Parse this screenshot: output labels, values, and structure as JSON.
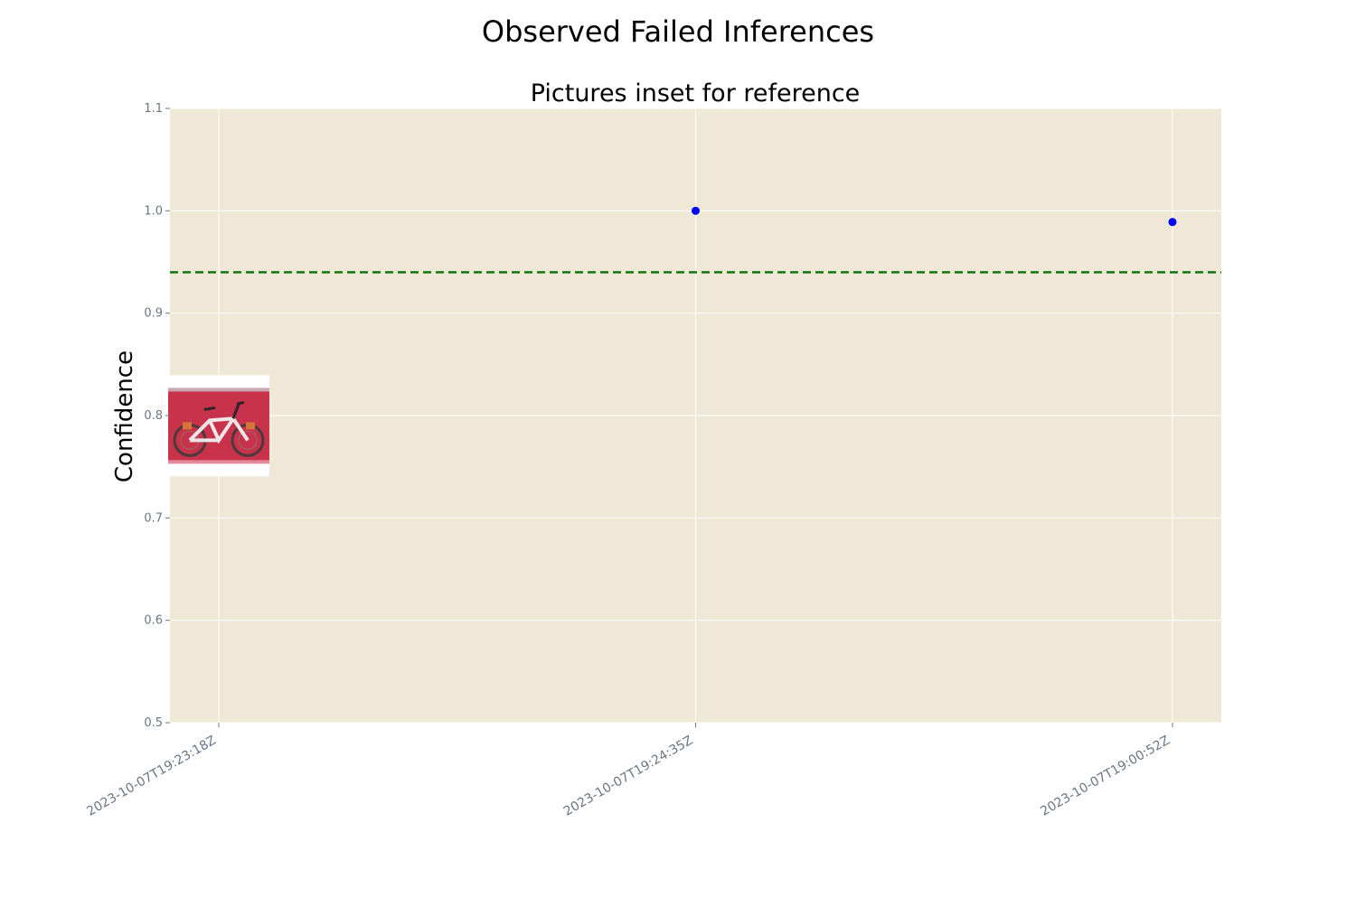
{
  "chart_data": {
    "type": "scatter",
    "title": "Observed Failed Inferences",
    "subtitle": "Pictures inset for reference",
    "xlabel": "",
    "ylabel": "Confidence",
    "categories": [
      "2023-10-07T19:23:18Z",
      "2023-10-07T19:24:35Z",
      "2023-10-07T19:00:52Z"
    ],
    "points": [
      {
        "x": "2023-10-07T19:24:35Z",
        "y": 1.0
      },
      {
        "x": "2023-10-07T19:00:52Z",
        "y": 0.989
      }
    ],
    "threshold": 0.94,
    "ylim": [
      0.5,
      1.1
    ],
    "yticks": [
      0.5,
      0.6,
      0.7,
      0.8,
      0.9,
      1.0,
      1.1
    ],
    "grid": true,
    "inset_image": {
      "x": "2023-10-07T19:23:18Z",
      "y": 0.79,
      "subject": "red bicycle"
    },
    "colors": {
      "axes_bg": "#efe8d6",
      "grid": "#ffffff",
      "point": "#0000ff",
      "threshold": "#117711",
      "tick_text": "#6b7682"
    }
  }
}
